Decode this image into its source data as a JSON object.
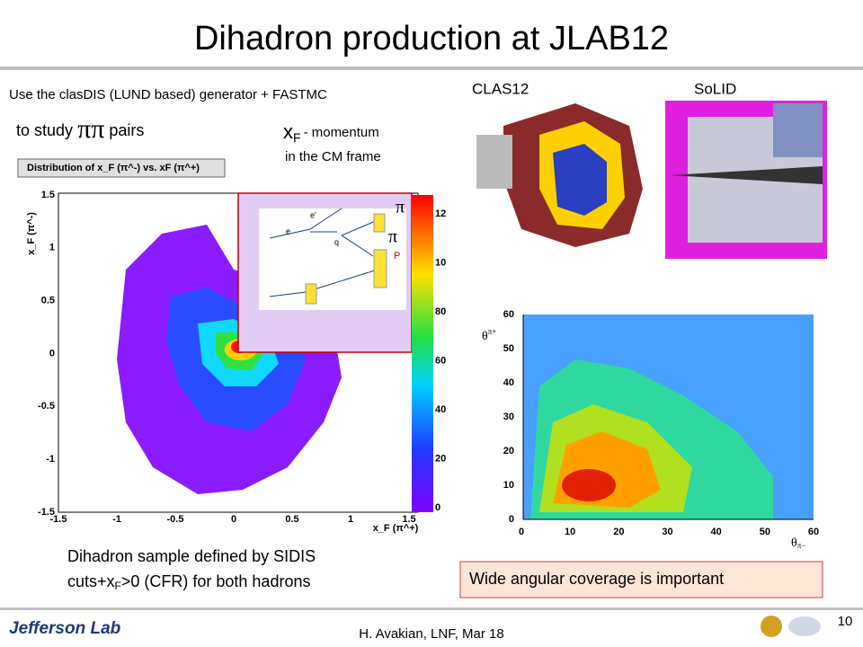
{
  "header": {
    "title": "Dihadron production at JLAB12"
  },
  "intro": {
    "line1": "Use the clasDIS (LUND based) generator + FASTMC",
    "line2": {
      "pre": "to study",
      "pipi": "ππ",
      "post": "pairs"
    }
  },
  "xf_note": {
    "x": "x",
    "sub": "F",
    "rest": "- momentum",
    "line2": "in the CM frame"
  },
  "left_plot": {
    "title": "Distribution of x_F (π^-) vs. xF (π^+)",
    "ylabel": "x_F (π^-)",
    "xlabel": "x_F (π^+)",
    "yticks": [
      "1.5",
      "1",
      "0.5",
      "0",
      "-0.5",
      "-1",
      "-1.5"
    ],
    "xticks": [
      "-1.5",
      "-1",
      "-0.5",
      "0",
      "0.5",
      "1",
      "1.5"
    ],
    "colorbar": [
      "12",
      "10",
      "80",
      "60",
      "40",
      "20",
      "0"
    ],
    "inset": {
      "pi1": "π",
      "pi2": "π",
      "p": "P",
      "e_prime": "e'",
      "e": "e",
      "q": "q"
    }
  },
  "detectors": {
    "clas": "CLAS12",
    "solid": "SoLID"
  },
  "right_plot": {
    "ylabel": "θ",
    "ysub": "π+",
    "xlabel": "θ",
    "xsub": "π−",
    "yticks": [
      "60",
      "50",
      "40",
      "30",
      "20",
      "10",
      "0"
    ],
    "xticks": [
      "0",
      "10",
      "20",
      "30",
      "40",
      "50",
      "60"
    ]
  },
  "caption": {
    "line1": "Dihadron sample defined  by SIDIS",
    "line2a": "cuts+x",
    "line2sub": "F",
    "line2b": ">0 (CFR) for both hadrons"
  },
  "note": "Wide angular coverage is important",
  "footer": {
    "logo": "Jefferson Lab",
    "author": "H. Avakian,  LNF,  Mar 18",
    "page": "10"
  }
}
